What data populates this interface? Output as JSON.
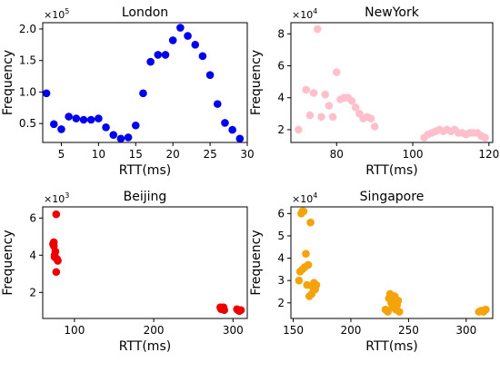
{
  "chart_data": [
    {
      "type": "scatter",
      "title": "London",
      "xlabel": "RTT(ms)",
      "ylabel": "Frequency",
      "multiplier": "×10",
      "multiplier_exp": "5",
      "color": "#0000ee",
      "xlim": [
        2.5,
        30
      ],
      "ylim": [
        0.2,
        2.1
      ],
      "xticks": [
        5,
        10,
        15,
        20,
        25,
        30
      ],
      "yticks": [
        0.5,
        1.0,
        1.5,
        2.0
      ],
      "ytick_labels": [
        "0.5",
        "1.0",
        "1.5",
        "2.0"
      ],
      "points": [
        [
          3,
          0.98
        ],
        [
          4,
          0.49
        ],
        [
          5,
          0.41
        ],
        [
          6,
          0.61
        ],
        [
          7,
          0.58
        ],
        [
          8,
          0.56
        ],
        [
          9,
          0.56
        ],
        [
          10,
          0.58
        ],
        [
          11,
          0.44
        ],
        [
          12,
          0.32
        ],
        [
          13,
          0.26
        ],
        [
          14,
          0.28
        ],
        [
          15,
          0.47
        ],
        [
          16,
          0.98
        ],
        [
          17,
          1.48
        ],
        [
          18,
          1.59
        ],
        [
          19,
          1.59
        ],
        [
          20,
          1.82
        ],
        [
          21,
          2.02
        ],
        [
          22,
          1.89
        ],
        [
          23,
          1.75
        ],
        [
          24,
          1.57
        ],
        [
          25,
          1.27
        ],
        [
          26,
          0.81
        ],
        [
          27,
          0.51
        ],
        [
          28,
          0.4
        ],
        [
          29,
          0.26
        ]
      ]
    },
    {
      "type": "scatter",
      "title": "NewYork",
      "xlabel": "RTT(ms)",
      "ylabel": "Frequency",
      "multiplier": "×10",
      "multiplier_exp": "4",
      "color": "#ffc0cb",
      "xlim": [
        68,
        121
      ],
      "ylim": [
        1.2,
        8.7
      ],
      "xticks": [
        80,
        100,
        120
      ],
      "yticks": [
        2,
        4,
        6,
        8
      ],
      "ytick_labels": [
        "2",
        "4",
        "6",
        "8"
      ],
      "points": [
        [
          70,
          2.0
        ],
        [
          72,
          4.5
        ],
        [
          73,
          2.9
        ],
        [
          74,
          4.3
        ],
        [
          75,
          8.3
        ],
        [
          76,
          2.8
        ],
        [
          77,
          4.2
        ],
        [
          78,
          3.5
        ],
        [
          79,
          2.8
        ],
        [
          80,
          5.6
        ],
        [
          81,
          3.9
        ],
        [
          82,
          4.0
        ],
        [
          83,
          4.0
        ],
        [
          84,
          3.8
        ],
        [
          85,
          3.4
        ],
        [
          86,
          3.0
        ],
        [
          87,
          2.7
        ],
        [
          88,
          2.8
        ],
        [
          89,
          2.7
        ],
        [
          90,
          2.2
        ],
        [
          103,
          1.5
        ],
        [
          104,
          1.7
        ],
        [
          105,
          1.8
        ],
        [
          106,
          1.9
        ],
        [
          107,
          2.0
        ],
        [
          108,
          1.9
        ],
        [
          109,
          2.0
        ],
        [
          110,
          1.9
        ],
        [
          111,
          2.0
        ],
        [
          112,
          1.8
        ],
        [
          113,
          1.8
        ],
        [
          114,
          1.7
        ],
        [
          115,
          1.8
        ],
        [
          116,
          1.8
        ],
        [
          117,
          1.8
        ],
        [
          118,
          1.6
        ],
        [
          119,
          1.5
        ]
      ]
    },
    {
      "type": "scatter",
      "title": "Beijing",
      "xlabel": "RTT(ms)",
      "ylabel": "Frequency",
      "multiplier": "×10",
      "multiplier_exp": "3",
      "color": "#ee0000",
      "xlim": [
        60,
        318
      ],
      "ylim": [
        0.6,
        6.6
      ],
      "xticks": [
        100,
        200,
        300
      ],
      "yticks": [
        2,
        4,
        6
      ],
      "ytick_labels": [
        "2",
        "4",
        "6"
      ],
      "points": [
        [
          73,
          4.6
        ],
        [
          74,
          4.7
        ],
        [
          74,
          4.5
        ],
        [
          75,
          4.0
        ],
        [
          75,
          3.9
        ],
        [
          76,
          4.2
        ],
        [
          77,
          3.1
        ],
        [
          77,
          6.2
        ],
        [
          78,
          3.8
        ],
        [
          79,
          3.7
        ],
        [
          284,
          1.2
        ],
        [
          285,
          1.1
        ],
        [
          286,
          1.15
        ],
        [
          287,
          1.1
        ],
        [
          288,
          1.2
        ],
        [
          289,
          1.05
        ],
        [
          305,
          1.1
        ],
        [
          306,
          1.05
        ],
        [
          308,
          1.0
        ],
        [
          310,
          1.05
        ]
      ]
    },
    {
      "type": "scatter",
      "title": "Singapore",
      "xlabel": "RTT(ms)",
      "ylabel": "Frequency",
      "multiplier": "×10",
      "multiplier_exp": "4",
      "color": "#f5a30a",
      "xlim": [
        148,
        323
      ],
      "ylim": [
        1.3,
        6.3
      ],
      "xticks": [
        150,
        200,
        250,
        300
      ],
      "yticks": [
        2,
        3,
        4,
        5,
        6
      ],
      "ytick_labels": [
        "2",
        "3",
        "4",
        "5",
        "6"
      ],
      "points": [
        [
          155,
          3.0
        ],
        [
          156,
          3.4
        ],
        [
          157,
          6.0
        ],
        [
          158,
          6.1
        ],
        [
          158,
          3.5
        ],
        [
          159,
          6.1
        ],
        [
          160,
          3.6
        ],
        [
          161,
          4.2
        ],
        [
          162,
          2.8
        ],
        [
          163,
          3.7
        ],
        [
          164,
          2.3
        ],
        [
          165,
          5.6
        ],
        [
          166,
          2.4
        ],
        [
          167,
          2.7
        ],
        [
          168,
          2.9
        ],
        [
          169,
          2.6
        ],
        [
          170,
          2.8
        ],
        [
          230,
          1.7
        ],
        [
          232,
          1.6
        ],
        [
          233,
          2.2
        ],
        [
          234,
          2.4
        ],
        [
          235,
          2.0
        ],
        [
          236,
          1.8
        ],
        [
          237,
          2.1
        ],
        [
          238,
          2.3
        ],
        [
          239,
          1.7
        ],
        [
          240,
          1.9
        ],
        [
          241,
          2.1
        ],
        [
          242,
          1.6
        ],
        [
          311,
          1.6
        ],
        [
          313,
          1.65
        ],
        [
          315,
          1.6
        ],
        [
          317,
          1.7
        ]
      ]
    }
  ]
}
